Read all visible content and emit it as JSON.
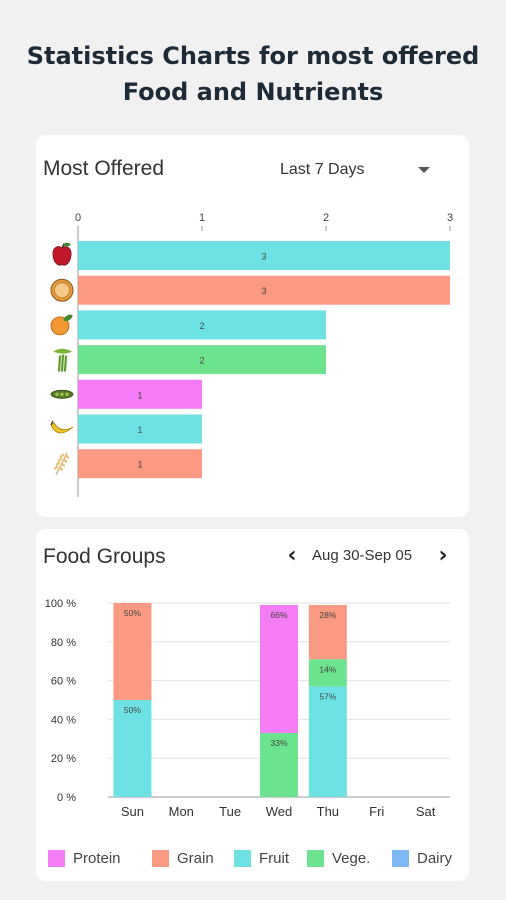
{
  "page": {
    "title_line1": "Statistics Charts for most offered",
    "title_line2": "Food and Nutrients"
  },
  "most_offered": {
    "title": "Most Offered",
    "range_value": "Last 7 Days"
  },
  "food_groups": {
    "title": "Food Groups",
    "date_range": "Aug 30-Sep 05",
    "prev_symbol": "‹",
    "next_symbol": "›"
  },
  "chart_data": [
    {
      "type": "bar",
      "orientation": "horizontal",
      "categories": [
        "apple-icon",
        "orange-icon",
        "peach-icon",
        "celery-icon",
        "peas-icon",
        "banana-icon",
        "wheat-icon"
      ],
      "values": [
        3,
        3,
        2,
        2,
        1,
        1,
        1
      ],
      "colors": [
        "#6ee2e2",
        "#fb9a83",
        "#6ee2e2",
        "#6ee38f",
        "#f47cf4",
        "#6ee2e2",
        "#fb9a83"
      ],
      "xlim": [
        0,
        3
      ],
      "xticks": [
        "0",
        "1",
        "2",
        "3"
      ],
      "data_labels": [
        "3",
        "3",
        "2",
        "2",
        "1",
        "1",
        "1"
      ],
      "grid": false
    },
    {
      "type": "bar",
      "stacked": true,
      "categories": [
        "Sun",
        "Mon",
        "Tue",
        "Wed",
        "Thu",
        "Fri",
        "Sat"
      ],
      "series": [
        {
          "name": "Protein",
          "color": "#f47cf4",
          "values": [
            0,
            0,
            0,
            66,
            0,
            0,
            0
          ]
        },
        {
          "name": "Grain",
          "color": "#fb9a83",
          "values": [
            50,
            0,
            0,
            0,
            28,
            0,
            0
          ]
        },
        {
          "name": "Fruit",
          "color": "#6ee2e2",
          "values": [
            50,
            0,
            0,
            0,
            57,
            0,
            0
          ]
        },
        {
          "name": "Vege.",
          "color": "#6ee38f",
          "values": [
            0,
            0,
            0,
            33,
            14,
            0,
            0
          ]
        },
        {
          "name": "Dairy",
          "color": "#7db8f4",
          "values": [
            0,
            0,
            0,
            0,
            0,
            0,
            0
          ]
        }
      ],
      "ylim": [
        0,
        100
      ],
      "yticks": [
        "0 %",
        "20 %",
        "40 %",
        "60 %",
        "80 %",
        "100 %"
      ],
      "legend": "bottom",
      "grid": true
    }
  ]
}
